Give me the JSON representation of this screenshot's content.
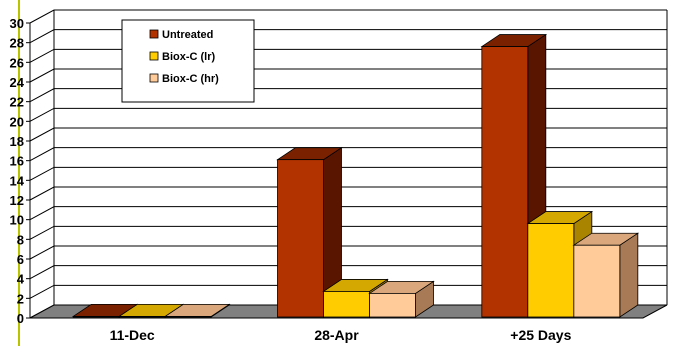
{
  "chart_data": {
    "type": "bar",
    "style": "3d-clustered-column",
    "categories": [
      "11-Dec",
      "28-Apr",
      "+25 Days"
    ],
    "series": [
      {
        "name": "Untreated",
        "values": [
          0,
          16,
          27.5
        ],
        "color": "#B33300",
        "side": "#5A1500",
        "top": "#7A2200"
      },
      {
        "name": "Biox-C (lr)",
        "values": [
          0,
          2.6,
          9.5
        ],
        "color": "#FFCC00",
        "side": "#A88400",
        "top": "#D4A800"
      },
      {
        "name": "Biox-C (hr)",
        "values": [
          0,
          2.4,
          7.3
        ],
        "color": "#FFCC99",
        "side": "#A87A55",
        "top": "#D9A77B"
      }
    ],
    "yticks": [
      0,
      2,
      4,
      6,
      8,
      10,
      12,
      14,
      16,
      18,
      20,
      22,
      24,
      26,
      28,
      30
    ],
    "ylim": [
      0,
      30
    ],
    "grid": true,
    "legend": "top-left"
  }
}
